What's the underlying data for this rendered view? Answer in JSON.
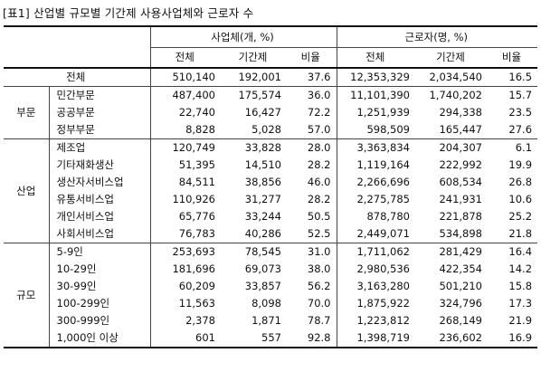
{
  "caption": "[표1] 산업별 규모별 기간제 사용사업체와 근로자 수",
  "header": {
    "group1": "사업체(개, %)",
    "group2": "근로자(명, %)",
    "sub": [
      "전체",
      "기간제",
      "비율",
      "전체",
      "기간제",
      "비율"
    ]
  },
  "total_row": {
    "label": "전체",
    "values": [
      "510,140",
      "192,001",
      "37.6",
      "12,353,329",
      "2,034,540",
      "16.5"
    ]
  },
  "sections": [
    {
      "name": "부문",
      "rows": [
        {
          "label": "민간부문",
          "values": [
            "487,400",
            "175,574",
            "36.0",
            "11,101,390",
            "1,740,202",
            "15.7"
          ]
        },
        {
          "label": "공공부문",
          "values": [
            "22,740",
            "16,427",
            "72.2",
            "1,251,939",
            "294,338",
            "23.5"
          ]
        },
        {
          "label": "정부부문",
          "values": [
            "8,828",
            "5,028",
            "57.0",
            "598,509",
            "165,447",
            "27.6"
          ]
        }
      ]
    },
    {
      "name": "산업",
      "rows": [
        {
          "label": "제조업",
          "values": [
            "120,749",
            "33,828",
            "28.0",
            "3,363,834",
            "204,307",
            "6.1"
          ]
        },
        {
          "label": "기타재화생산",
          "values": [
            "51,395",
            "14,510",
            "28.2",
            "1,119,164",
            "222,992",
            "19.9"
          ]
        },
        {
          "label": "생산자서비스업",
          "values": [
            "84,511",
            "38,856",
            "46.0",
            "2,266,696",
            "608,534",
            "26.8"
          ]
        },
        {
          "label": "유통서비스업",
          "values": [
            "110,926",
            "31,277",
            "28.2",
            "2,275,785",
            "241,931",
            "10.6"
          ]
        },
        {
          "label": "개인서비스업",
          "values": [
            "65,776",
            "33,244",
            "50.5",
            "878,780",
            "221,878",
            "25.2"
          ]
        },
        {
          "label": "사회서비스업",
          "values": [
            "76,783",
            "40,286",
            "52.5",
            "2,449,071",
            "534,898",
            "21.8"
          ]
        }
      ]
    },
    {
      "name": "규모",
      "rows": [
        {
          "label": "5-9인",
          "values": [
            "253,693",
            "78,545",
            "31.0",
            "1,711,062",
            "281,429",
            "16.4"
          ]
        },
        {
          "label": "10-29인",
          "values": [
            "181,696",
            "69,073",
            "38.0",
            "2,980,536",
            "422,354",
            "14.2"
          ]
        },
        {
          "label": "30-99인",
          "values": [
            "60,209",
            "33,857",
            "56.2",
            "3,163,280",
            "501,210",
            "15.8"
          ]
        },
        {
          "label": "100-299인",
          "values": [
            "11,563",
            "8,098",
            "70.0",
            "1,875,922",
            "324,796",
            "17.3"
          ]
        },
        {
          "label": "300-999인",
          "values": [
            "2,378",
            "1,871",
            "78.7",
            "1,223,812",
            "268,149",
            "21.9"
          ]
        },
        {
          "label": "1,000인 이상",
          "values": [
            "601",
            "557",
            "92.8",
            "1,398,719",
            "236,602",
            "16.9"
          ]
        }
      ]
    }
  ]
}
